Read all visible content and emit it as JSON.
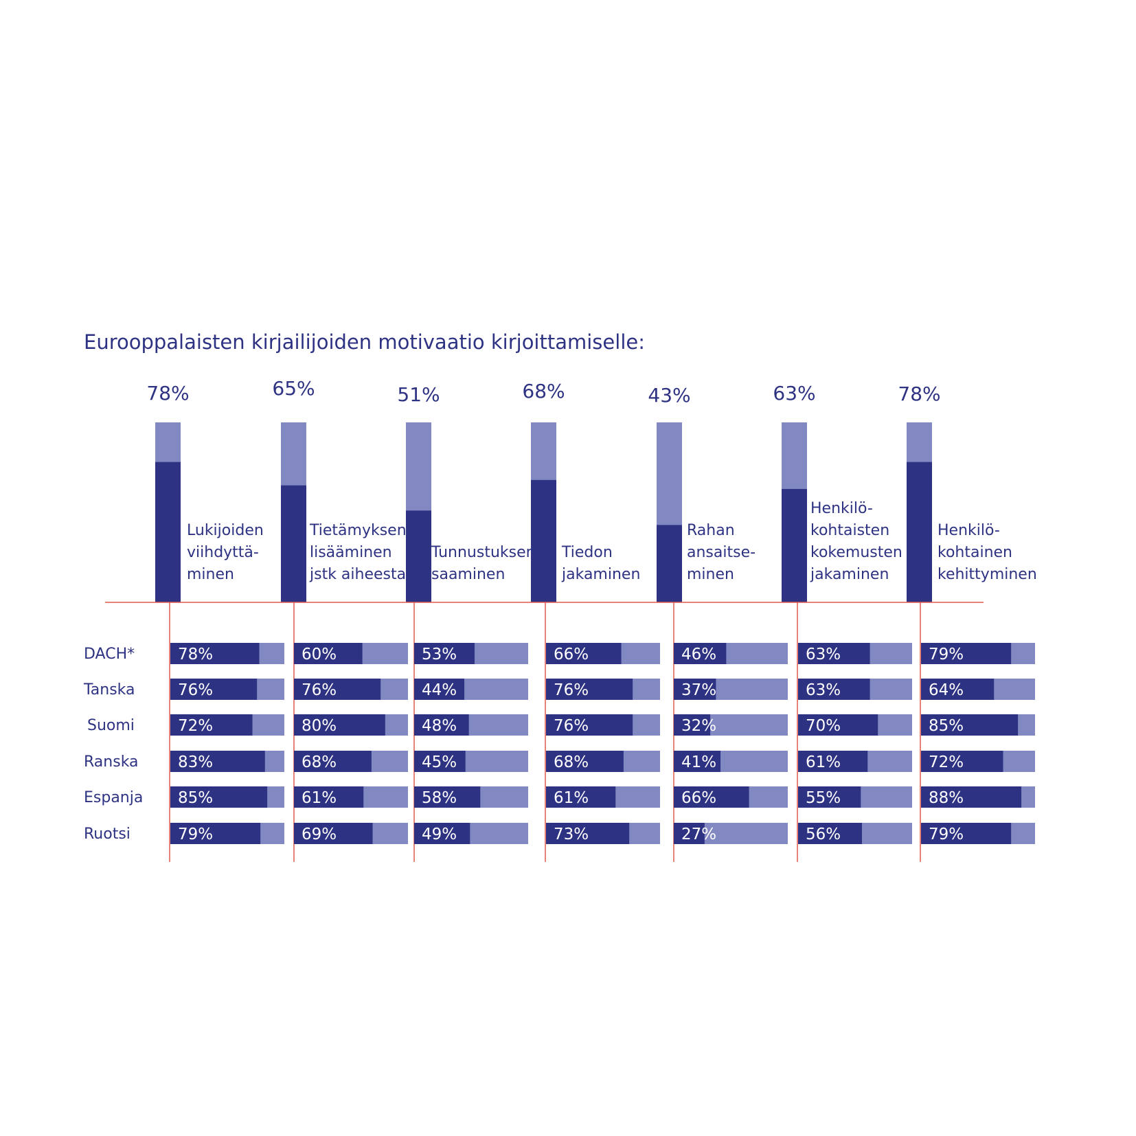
{
  "chart_data": {
    "type": "bar",
    "title": "Eurooppalaisten kirjailijoiden motivaatio kirjoittamiselle:",
    "colors": {
      "dark": "#2e3283",
      "light": "#8289c2",
      "text": "#2e3283",
      "rule": "#e25a4f"
    },
    "categories": [
      "Lukijoiden viihdyttä- minen",
      "Tietämyksen lisääminen jstk aiheesta",
      "Tunnustuksen saaminen",
      "Tiedon jakaminen",
      "Rahan ansaitse- minen",
      "Henkilö- kohtaisten kokemusten jakaminen",
      "Henkilö- kohtainen kehittyminen"
    ],
    "category_lines": [
      [
        "Lukijoiden",
        "viihdyttä-",
        "minen"
      ],
      [
        "Tietämyksen",
        "lisääminen",
        "jstk aiheesta"
      ],
      [
        "Tunnustuksen",
        "saaminen"
      ],
      [
        "Tiedon",
        "jakaminen"
      ],
      [
        "Rahan",
        "ansaitse-",
        "minen"
      ],
      [
        "Henkilö-",
        "kohtaisten",
        "kokemusten",
        "jakaminen"
      ],
      [
        "Henkilö-",
        "kohtainen",
        "kehittyminen"
      ]
    ],
    "overall": {
      "values": [
        78,
        65,
        51,
        68,
        43,
        63,
        78
      ],
      "labels": [
        "78%",
        "65%",
        "51%",
        "68%",
        "43%",
        "63%",
        "78%"
      ]
    },
    "ylim": [
      0,
      100
    ],
    "series": [
      {
        "name": "DACH*",
        "values": [
          78,
          60,
          53,
          66,
          46,
          63,
          79
        ]
      },
      {
        "name": "Tanska",
        "values": [
          76,
          76,
          44,
          76,
          37,
          63,
          64
        ]
      },
      {
        "name": "Suomi",
        "values": [
          72,
          80,
          48,
          76,
          32,
          70,
          85
        ]
      },
      {
        "name": "Ranska",
        "values": [
          83,
          68,
          45,
          68,
          41,
          61,
          72
        ]
      },
      {
        "name": "Espanja",
        "values": [
          85,
          61,
          58,
          61,
          66,
          55,
          88
        ]
      },
      {
        "name": "Ruotsi",
        "values": [
          79,
          69,
          49,
          73,
          27,
          56,
          79
        ]
      }
    ],
    "unit": "%"
  }
}
